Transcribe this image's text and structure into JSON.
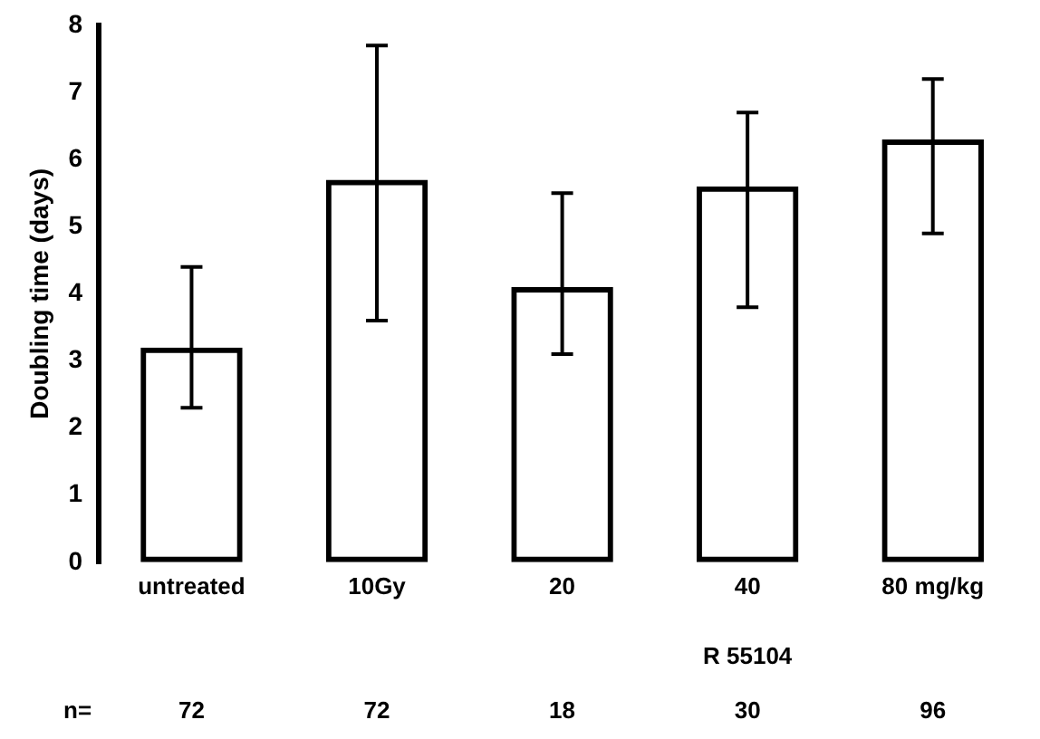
{
  "chart_data": {
    "type": "bar",
    "ylabel": "Doubling time (days)",
    "categories": [
      "untreated",
      "10Gy",
      "20",
      "40",
      "80 mg/kg"
    ],
    "values": [
      3.2,
      5.7,
      4.1,
      5.6,
      6.3
    ],
    "errors": [
      [
        2.3,
        4.4
      ],
      [
        3.6,
        7.7
      ],
      [
        3.1,
        5.5
      ],
      [
        3.8,
        6.7
      ],
      [
        4.9,
        7.2
      ]
    ],
    "color": "#000000",
    "ylim": [
      0,
      8
    ],
    "yticks": [
      0,
      1,
      2,
      3,
      4,
      5,
      6,
      7,
      8
    ],
    "grid": false,
    "annotations": [
      "R 55104",
      "n=",
      "72",
      "72",
      "18",
      "30",
      "96"
    ]
  }
}
